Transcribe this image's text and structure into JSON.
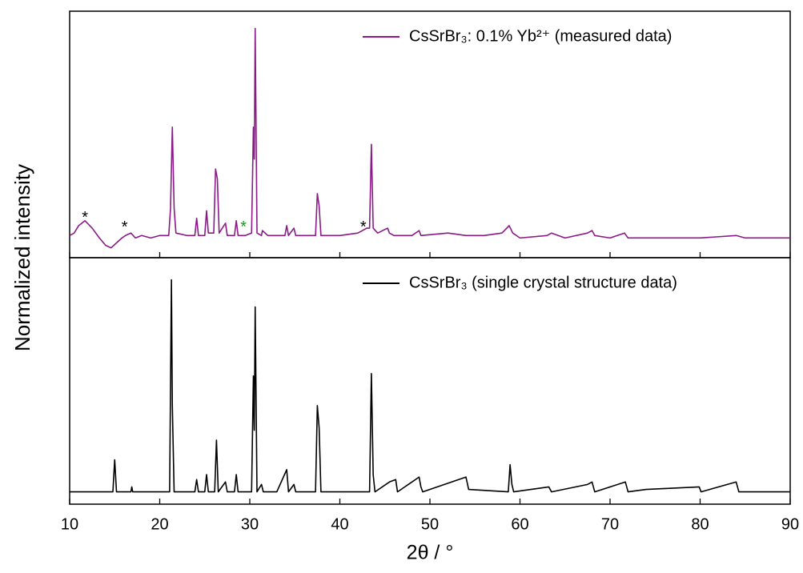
{
  "chart_data": [
    {
      "type": "line",
      "ylabel": "Normalized intensity",
      "legend": "upper right",
      "xlim": [
        10,
        90
      ],
      "xticks": [
        10,
        20,
        30,
        40,
        50,
        60,
        70,
        80,
        90
      ],
      "ylim": [
        0,
        100
      ],
      "x": [
        10,
        10.5,
        11,
        11.7,
        12.5,
        13.3,
        14,
        14.6,
        15.2,
        15.8,
        16.2,
        16.8,
        17.3,
        18,
        19,
        20,
        21,
        21.2,
        21.4,
        21.6,
        21.8,
        23,
        23.9,
        24.1,
        24.3,
        25,
        25.2,
        25.4,
        26,
        26.2,
        26.4,
        26.6,
        27.3,
        27.5,
        28.3,
        28.5,
        28.7,
        29.5,
        30.2,
        30.4,
        30.5,
        30.6,
        30.8,
        31.3,
        31.4,
        32,
        33.9,
        34.1,
        34.3,
        34.9,
        35.1,
        36.5,
        37.3,
        37.5,
        37.7,
        37.9,
        38.5,
        40,
        42,
        43,
        43.3,
        43.5,
        43.7,
        44.2,
        45.3,
        45.5,
        46,
        48,
        48.8,
        49,
        52,
        54,
        56,
        58,
        58.8,
        59.2,
        60,
        63,
        63.5,
        65,
        67.5,
        68,
        68.3,
        70,
        71.6,
        72,
        75,
        80,
        84,
        85,
        90
      ],
      "series": [
        {
          "name": "CsSrBr₃: 0.1% Yb²⁺ (measured data)",
          "color": "#8b1a89",
          "values": [
            9,
            10,
            13,
            15,
            12,
            8,
            5,
            4,
            6,
            8,
            9,
            10,
            8,
            9,
            8,
            9,
            9,
            20,
            53,
            20,
            10,
            9,
            9,
            16,
            9,
            9,
            19,
            10,
            10,
            36,
            32,
            10,
            14,
            9,
            9,
            15,
            9,
            9,
            10,
            53,
            40,
            93,
            10,
            9,
            11,
            9,
            9,
            13,
            9,
            12,
            9,
            9,
            9,
            26,
            21,
            9,
            9,
            9,
            10,
            12,
            12,
            46,
            12,
            10,
            12,
            10,
            9,
            9,
            11,
            9,
            10,
            9,
            9,
            10,
            13,
            10,
            8,
            9,
            10,
            8,
            10,
            11,
            9,
            8,
            10,
            8,
            8,
            8,
            9,
            8,
            8
          ]
        }
      ],
      "annotations": [
        {
          "text": "*",
          "x": 11.7,
          "y": 18,
          "color": "#000000"
        },
        {
          "text": "*",
          "x": 16.1,
          "y": 14,
          "color": "#000000"
        },
        {
          "text": "*",
          "x": 29.3,
          "y": 14,
          "color": "#1a9a1a"
        },
        {
          "text": "*",
          "x": 42.6,
          "y": 14,
          "color": "#000000"
        }
      ]
    },
    {
      "type": "line",
      "xlabel": "2θ / °",
      "legend": "upper right",
      "xlim": [
        10,
        90
      ],
      "xticks": [
        10,
        20,
        30,
        40,
        50,
        60,
        70,
        80,
        90
      ],
      "ylim": [
        0,
        100
      ],
      "x": [
        10,
        14.8,
        15,
        15.2,
        16.8,
        16.9,
        17,
        21.1,
        21.3,
        21.4,
        21.6,
        23.9,
        24.1,
        24.3,
        25,
        25.2,
        25.4,
        26.1,
        26.3,
        26.5,
        27.3,
        27.5,
        28.3,
        28.5,
        28.7,
        30.2,
        30.4,
        30.5,
        30.6,
        30.8,
        31.3,
        31.5,
        33,
        34.1,
        34.3,
        34.9,
        35.1,
        37.3,
        37.5,
        37.7,
        37.9,
        43.3,
        43.5,
        43.7,
        43.9,
        45.5,
        46.2,
        46.4,
        48.8,
        49,
        49.2,
        54,
        54.3,
        58.7,
        58.9,
        59.1,
        59.3,
        63.2,
        63.5,
        67.5,
        68,
        68.3,
        71.7,
        72,
        74,
        79.9,
        80.1,
        84,
        84.3,
        90
      ],
      "series": [
        {
          "name": "CsSrBr₃ (single crystal structure data)",
          "color": "#000000",
          "values": [
            5,
            5,
            18,
            5,
            5,
            7,
            5,
            5,
            91,
            40,
            5,
            5,
            10,
            5,
            5,
            12,
            5,
            5,
            26,
            5,
            9,
            5,
            5,
            12,
            5,
            5,
            52,
            30,
            80,
            5,
            8,
            5,
            5,
            14,
            5,
            8,
            5,
            5,
            40,
            31,
            5,
            5,
            53,
            12,
            5,
            9,
            10,
            5,
            11,
            7,
            5,
            11,
            6,
            5,
            16,
            8,
            5,
            7,
            5,
            8,
            9,
            5,
            9,
            5,
            6,
            7,
            5,
            9,
            5,
            5
          ]
        }
      ]
    }
  ]
}
